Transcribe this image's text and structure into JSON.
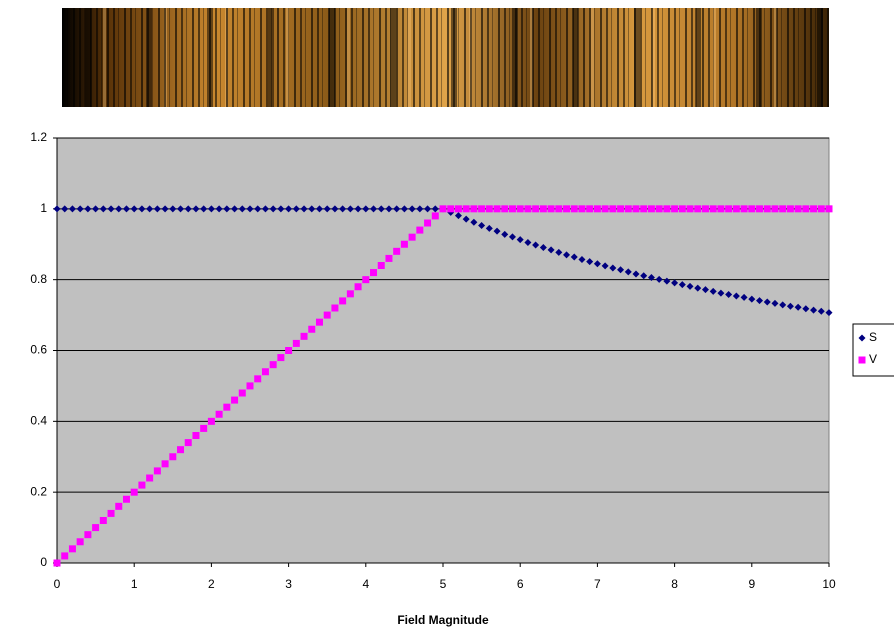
{
  "chart_data": {
    "type": "scatter",
    "xlabel": "Field Magnitude",
    "x": [
      0,
      0.1,
      0.2,
      0.3,
      0.4,
      0.5,
      0.6,
      0.7,
      0.8,
      0.9,
      1,
      1.1,
      1.2,
      1.3,
      1.4,
      1.5,
      1.6,
      1.7,
      1.8,
      1.9,
      2,
      2.1,
      2.2,
      2.3,
      2.4,
      2.5,
      2.6,
      2.7,
      2.8,
      2.9,
      3,
      3.1,
      3.2,
      3.3,
      3.4,
      3.5,
      3.6,
      3.7,
      3.8,
      3.9,
      4,
      4.1,
      4.2,
      4.3,
      4.4,
      4.5,
      4.6,
      4.7,
      4.8,
      4.9,
      5,
      5.1,
      5.2,
      5.3,
      5.4,
      5.5,
      5.6,
      5.7,
      5.8,
      5.9,
      6,
      6.1,
      6.2,
      6.3,
      6.4,
      6.5,
      6.6,
      6.7,
      6.8,
      6.9,
      7,
      7.1,
      7.2,
      7.3,
      7.4,
      7.5,
      7.6,
      7.7,
      7.8,
      7.9,
      8,
      8.1,
      8.2,
      8.3,
      8.4,
      8.5,
      8.6,
      8.7,
      8.8,
      8.9,
      9,
      9.1,
      9.2,
      9.3,
      9.4,
      9.5,
      9.6,
      9.7,
      9.8,
      9.9,
      10
    ],
    "series": [
      {
        "name": "S",
        "color": "#000080",
        "marker": "diamond",
        "values": [
          1,
          1,
          1,
          1,
          1,
          1,
          1,
          1,
          1,
          1,
          1,
          1,
          1,
          1,
          1,
          1,
          1,
          1,
          1,
          1,
          1,
          1,
          1,
          1,
          1,
          1,
          1,
          1,
          1,
          1,
          1,
          1,
          1,
          1,
          1,
          1,
          1,
          1,
          1,
          1,
          1,
          1,
          1,
          1,
          1,
          1,
          1,
          1,
          1,
          1,
          1,
          0.99,
          0.981,
          0.971,
          0.962,
          0.953,
          0.945,
          0.937,
          0.928,
          0.921,
          0.913,
          0.905,
          0.898,
          0.891,
          0.884,
          0.877,
          0.87,
          0.864,
          0.857,
          0.851,
          0.845,
          0.839,
          0.833,
          0.828,
          0.822,
          0.816,
          0.811,
          0.806,
          0.801,
          0.796,
          0.791,
          0.786,
          0.781,
          0.776,
          0.772,
          0.767,
          0.762,
          0.758,
          0.754,
          0.75,
          0.745,
          0.741,
          0.737,
          0.733,
          0.729,
          0.725,
          0.722,
          0.718,
          0.714,
          0.711,
          0.707
        ]
      },
      {
        "name": "V",
        "color": "#ff00ff",
        "marker": "square",
        "values": [
          0,
          0.02,
          0.04,
          0.06,
          0.08,
          0.1,
          0.12,
          0.14,
          0.16,
          0.18,
          0.2,
          0.22,
          0.24,
          0.26,
          0.28,
          0.3,
          0.32,
          0.34,
          0.36,
          0.38,
          0.4,
          0.42,
          0.44,
          0.46,
          0.48,
          0.5,
          0.52,
          0.54,
          0.56,
          0.58,
          0.6,
          0.62,
          0.64,
          0.66,
          0.68,
          0.7,
          0.72,
          0.74,
          0.76,
          0.78,
          0.8,
          0.82,
          0.84,
          0.86,
          0.88,
          0.9,
          0.92,
          0.94,
          0.96,
          0.98,
          1,
          1,
          1,
          1,
          1,
          1,
          1,
          1,
          1,
          1,
          1,
          1,
          1,
          1,
          1,
          1,
          1,
          1,
          1,
          1,
          1,
          1,
          1,
          1,
          1,
          1,
          1,
          1,
          1,
          1,
          1,
          1,
          1,
          1,
          1,
          1,
          1,
          1,
          1,
          1,
          1,
          1,
          1,
          1,
          1,
          1,
          1,
          1,
          1,
          1,
          1
        ]
      }
    ],
    "xlim": [
      0,
      10
    ],
    "ylim": [
      0,
      1.2
    ],
    "xticks": [
      0,
      1,
      2,
      3,
      4,
      5,
      6,
      7,
      8,
      9,
      10
    ],
    "yticks": [
      0,
      0.2,
      0.4,
      0.6,
      0.8,
      1,
      1.2
    ],
    "grid": true,
    "legend": "right"
  }
}
